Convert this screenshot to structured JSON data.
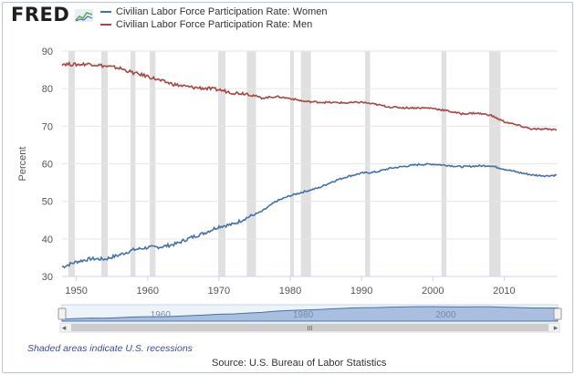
{
  "header": {
    "logo_text": "FRED",
    "logo_icon": "fred-graph-icon"
  },
  "colors": {
    "women": "#4572a7",
    "men": "#aa4643",
    "recession": "#e0e0e0",
    "navigator_fill": "#a8bfe0",
    "navigator_bg": "#eef3fa"
  },
  "footer": {
    "recession_note": "Shaded areas indicate U.S. recessions",
    "source": "Source: U.S. Bureau of Labor Statistics"
  },
  "navigator": {
    "tick_labels": [
      "1960",
      "1980",
      "2000"
    ],
    "scrollbar_grip": "III",
    "left_arrow": "◂",
    "right_arrow": "▸"
  },
  "chart_data": {
    "type": "line",
    "title": "",
    "xlabel": "",
    "ylabel": "Percent",
    "xlim": [
      1948,
      2017.5
    ],
    "ylim": [
      30,
      90
    ],
    "yticks": [
      30,
      40,
      50,
      60,
      70,
      80,
      90
    ],
    "xticks": [
      1950,
      1960,
      1970,
      1980,
      1990,
      2000,
      2010
    ],
    "grid": true,
    "legend_position": "top-left",
    "recessions": [
      [
        1948.9,
        1949.8
      ],
      [
        1953.5,
        1954.4
      ],
      [
        1957.6,
        1958.3
      ],
      [
        1960.3,
        1961.1
      ],
      [
        1969.9,
        1970.9
      ],
      [
        1973.9,
        1975.2
      ],
      [
        1980.0,
        1980.5
      ],
      [
        1981.5,
        1982.9
      ],
      [
        1990.5,
        1991.2
      ],
      [
        2001.2,
        2001.9
      ],
      [
        2007.9,
        2009.5
      ]
    ],
    "series": [
      {
        "name": "Civilian Labor Force Participation Rate: Women",
        "color": "#4572a7",
        "x": [
          1948,
          1950,
          1952,
          1954,
          1956,
          1958,
          1960,
          1962,
          1964,
          1966,
          1968,
          1970,
          1972,
          1974,
          1976,
          1978,
          1980,
          1982,
          1984,
          1986,
          1988,
          1990,
          1992,
          1994,
          1996,
          1998,
          2000,
          2002,
          2004,
          2006,
          2008,
          2010,
          2012,
          2014,
          2016,
          2017.5
        ],
        "y": [
          32.5,
          33.9,
          34.7,
          34.6,
          35.7,
          37.1,
          37.7,
          37.9,
          38.7,
          40.3,
          41.6,
          43.3,
          43.9,
          45.7,
          47.3,
          50.0,
          51.5,
          52.6,
          53.6,
          55.3,
          56.6,
          57.5,
          57.8,
          58.8,
          59.3,
          59.8,
          59.9,
          59.6,
          59.2,
          59.4,
          59.5,
          58.6,
          57.7,
          57.0,
          56.8,
          57.0
        ]
      },
      {
        "name": "Civilian Labor Force Participation Rate: Men",
        "color": "#aa4643",
        "x": [
          1948,
          1950,
          1952,
          1954,
          1956,
          1958,
          1960,
          1962,
          1964,
          1966,
          1968,
          1970,
          1972,
          1974,
          1976,
          1978,
          1980,
          1982,
          1984,
          1986,
          1988,
          1990,
          1992,
          1994,
          1996,
          1998,
          2000,
          2002,
          2004,
          2006,
          2008,
          2010,
          2012,
          2014,
          2016,
          2017.5
        ],
        "y": [
          86.6,
          86.4,
          86.6,
          86.0,
          85.5,
          84.2,
          83.3,
          82.0,
          81.0,
          80.4,
          80.1,
          79.7,
          78.9,
          78.7,
          77.5,
          77.9,
          77.4,
          76.6,
          76.4,
          76.3,
          76.2,
          76.4,
          75.8,
          75.1,
          74.9,
          74.9,
          74.8,
          74.1,
          73.3,
          73.5,
          73.0,
          71.2,
          70.2,
          69.2,
          69.2,
          69.1
        ]
      }
    ]
  }
}
